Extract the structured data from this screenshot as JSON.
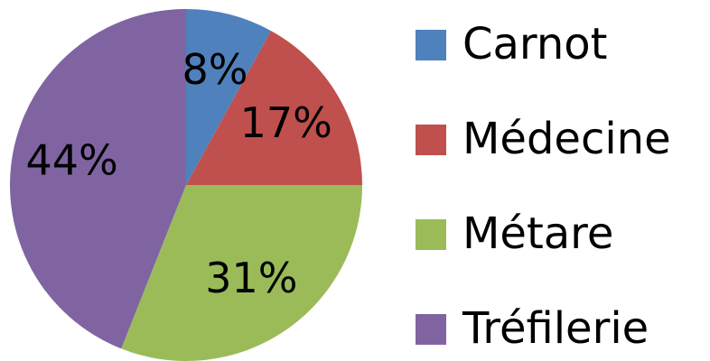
{
  "chart_data": {
    "type": "pie",
    "categories": [
      "Carnot",
      "Médecine",
      "Métare",
      "Tréfilerie"
    ],
    "values": [
      8,
      17,
      31,
      44
    ],
    "value_labels": [
      "8%",
      "17%",
      "31%",
      "44%"
    ],
    "colors": [
      "#4f81bd",
      "#c0504d",
      "#9bbb59",
      "#8064a2"
    ],
    "legend": "right"
  }
}
